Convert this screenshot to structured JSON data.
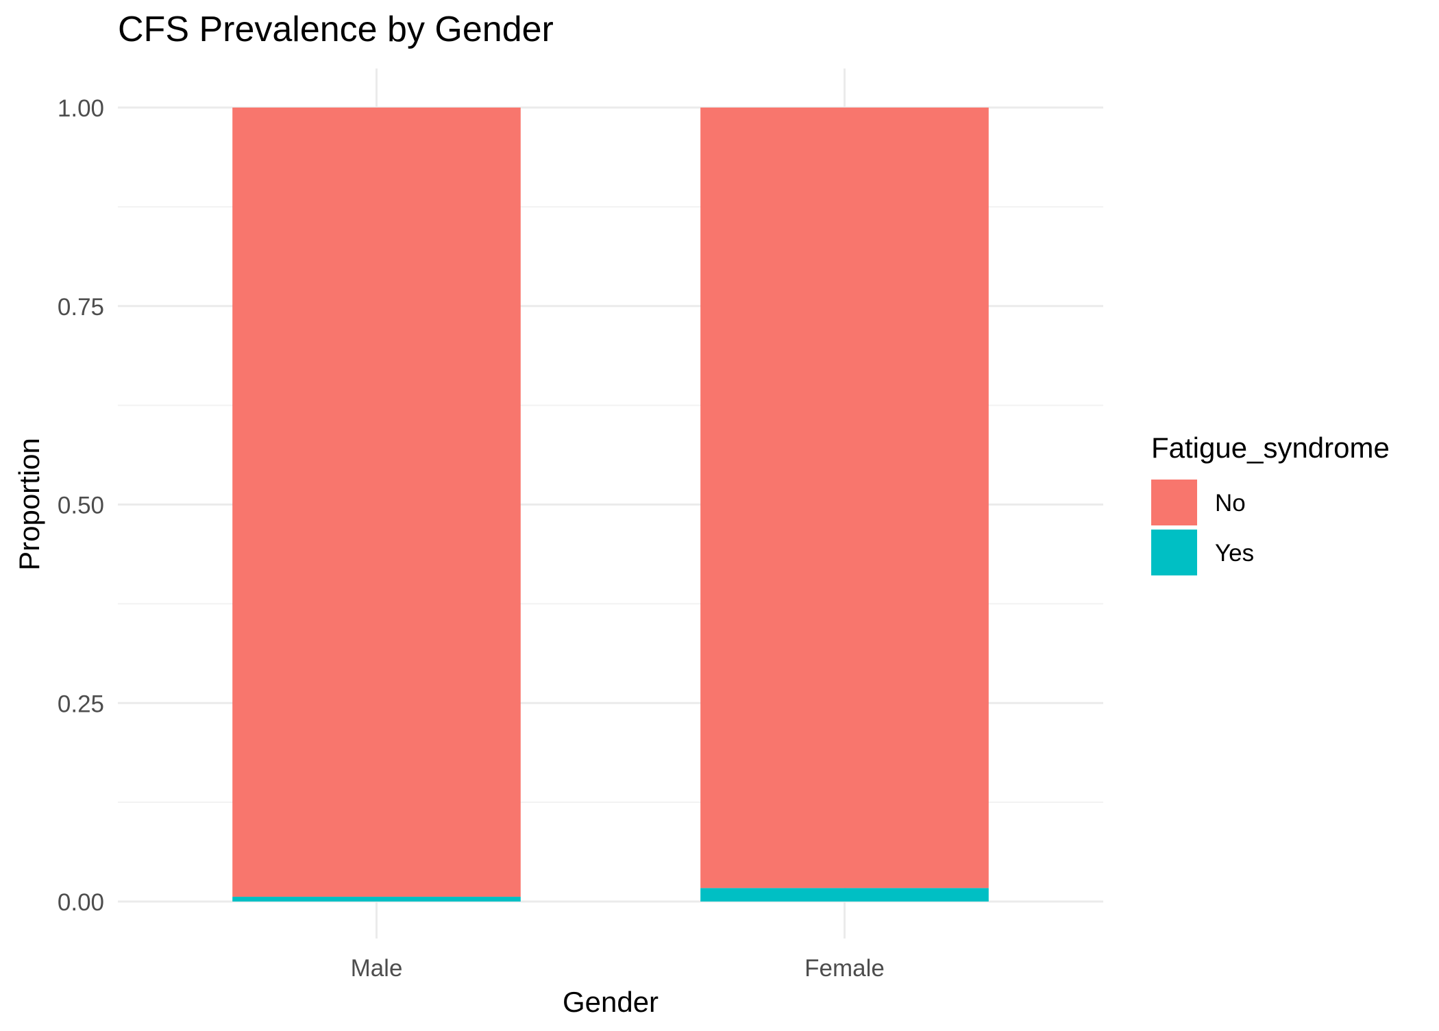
{
  "chart_data": {
    "type": "bar",
    "stacked": true,
    "title": "CFS Prevalence by Gender",
    "xlabel": "Gender",
    "ylabel": "Proportion",
    "categories": [
      "Male",
      "Female"
    ],
    "series": [
      {
        "name": "No",
        "values": [
          0.994,
          0.983
        ],
        "color": "#F8766D"
      },
      {
        "name": "Yes",
        "values": [
          0.006,
          0.017
        ],
        "color": "#00BFC4"
      }
    ],
    "stack_order": [
      "Yes",
      "No"
    ],
    "ylim": [
      0,
      1
    ],
    "yticks": [
      0,
      0.25,
      0.5,
      0.75,
      1.0
    ],
    "ytick_labels": [
      "0.00",
      "0.25",
      "0.50",
      "0.75",
      "1.00"
    ],
    "grid": true,
    "legend": {
      "title": "Fatigue_syndrome",
      "placement": "right",
      "items": [
        {
          "label": "No",
          "color": "#F8766D"
        },
        {
          "label": "Yes",
          "color": "#00BFC4"
        }
      ]
    },
    "colors": {
      "grid_major": "#EBEBEB",
      "grid_minor": "#F2F2F2",
      "tick_text": "#4D4D4D",
      "title_text": "#000000"
    }
  }
}
